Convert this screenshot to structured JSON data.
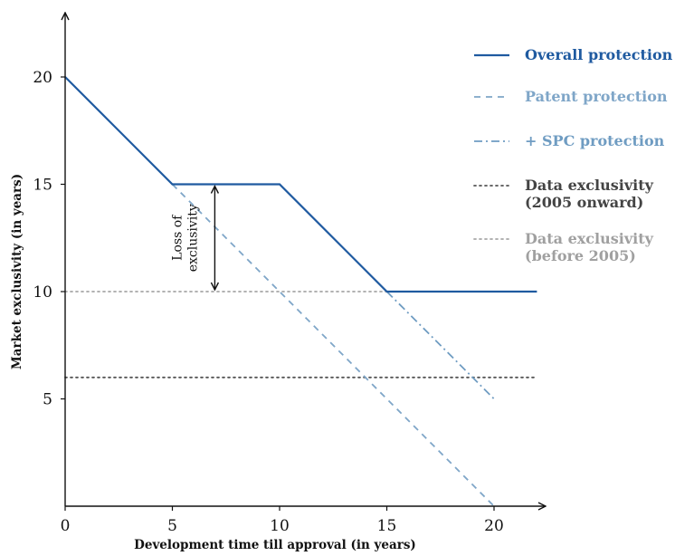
{
  "chart_data": {
    "type": "line",
    "title": "",
    "xlabel": "Development time till approval (in years)",
    "ylabel": "Market exclusivity (in years)",
    "xlim": [
      0,
      23
    ],
    "ylim": [
      0,
      23
    ],
    "xticks": [
      0,
      5,
      10,
      15,
      20
    ],
    "yticks": [
      5,
      10,
      15,
      20
    ],
    "grid": false,
    "legend_position": "right",
    "series": [
      {
        "name": "Overall protection",
        "style": "solid",
        "color": "#1f5aa0",
        "points": [
          [
            0,
            20
          ],
          [
            5,
            15
          ],
          [
            10,
            15
          ],
          [
            15,
            10
          ],
          [
            22,
            10
          ]
        ]
      },
      {
        "name": "Patent protection",
        "style": "dashed",
        "color": "#7fa6c8",
        "points": [
          [
            5,
            15
          ],
          [
            20,
            0
          ]
        ]
      },
      {
        "name": "+ SPC protection",
        "style": "dashdot",
        "color": "#6f9cc2",
        "points": [
          [
            15,
            10
          ],
          [
            20,
            5
          ]
        ]
      },
      {
        "name": "Data exclusivity\n(2005 onward)",
        "style": "dotted",
        "color": "#555555",
        "points": [
          [
            0,
            6
          ],
          [
            22,
            6
          ]
        ]
      },
      {
        "name": "Data exclusivity\n(before 2005)",
        "style": "dotted",
        "color": "#a8a8a8",
        "points": [
          [
            0,
            10
          ],
          [
            22,
            10
          ]
        ]
      }
    ],
    "annotations": [
      {
        "text": "Loss of\nexclusivity",
        "type": "double-arrow",
        "x": 7,
        "y_from": 15,
        "y_to": 10
      }
    ]
  }
}
